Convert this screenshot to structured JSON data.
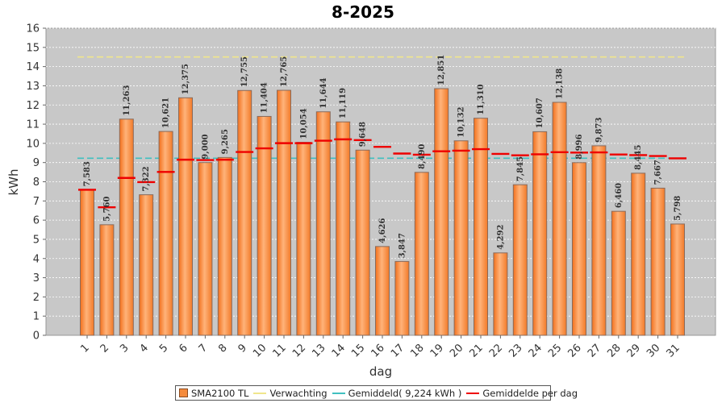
{
  "chart_data": {
    "type": "bar",
    "title": "8-2025",
    "xlabel": "dag",
    "ylabel": "kWh",
    "ylim": [
      0,
      16
    ],
    "yticks": [
      0,
      1,
      2,
      3,
      4,
      5,
      6,
      7,
      8,
      9,
      10,
      11,
      12,
      13,
      14,
      15,
      16
    ],
    "grid": true,
    "legend_position": "bottom",
    "categories": [
      "1",
      "2",
      "3",
      "4",
      "5",
      "6",
      "7",
      "8",
      "9",
      "10",
      "11",
      "12",
      "13",
      "14",
      "15",
      "16",
      "17",
      "18",
      "19",
      "20",
      "21",
      "22",
      "23",
      "24",
      "25",
      "26",
      "27",
      "28",
      "29",
      "30",
      "31"
    ],
    "series": [
      {
        "name": "SMA2100 TL",
        "kind": "bar",
        "color": "#f58b3d",
        "values": [
          7.583,
          5.76,
          11.263,
          7.322,
          10.621,
          12.375,
          9.0,
          9.265,
          12.755,
          11.404,
          12.765,
          10.054,
          11.644,
          11.119,
          9.648,
          4.626,
          3.847,
          8.49,
          12.851,
          10.132,
          11.31,
          4.292,
          7.845,
          10.607,
          12.138,
          8.996,
          9.873,
          6.46,
          8.445,
          7.667,
          5.798
        ],
        "labels": [
          "7,583",
          "5,760",
          "11,263",
          "7,322",
          "10,621",
          "12,375",
          "9,000",
          "9,265",
          "12,755",
          "11,404",
          "12,765",
          "10,054",
          "11,644",
          "11,119",
          "9,648",
          "4,626",
          "3,847",
          "8,490",
          "12,851",
          "10,132",
          "11,310",
          "4,292",
          "7,845",
          "10,607",
          "12,138",
          "8,996",
          "9,873",
          "6,460",
          "8,445",
          "7,667",
          "5,798"
        ]
      },
      {
        "name": "Verwachting",
        "kind": "line",
        "color": "#f0e68c",
        "value": 14.5
      },
      {
        "name": "Gemiddeld( 9,224 kWh )",
        "kind": "line",
        "color": "#40c0c0",
        "value": 9.224
      },
      {
        "name": "Gemiddelde per dag",
        "kind": "marker",
        "color": "#ee0000",
        "values": [
          7.583,
          6.67,
          8.2,
          7.98,
          8.51,
          9.15,
          9.13,
          9.15,
          9.55,
          9.74,
          10.01,
          10.01,
          10.14,
          10.21,
          10.17,
          9.82,
          9.47,
          9.41,
          9.59,
          9.62,
          9.7,
          9.45,
          9.38,
          9.43,
          9.54,
          9.52,
          9.53,
          9.42,
          9.39,
          9.34,
          9.22
        ]
      }
    ]
  }
}
